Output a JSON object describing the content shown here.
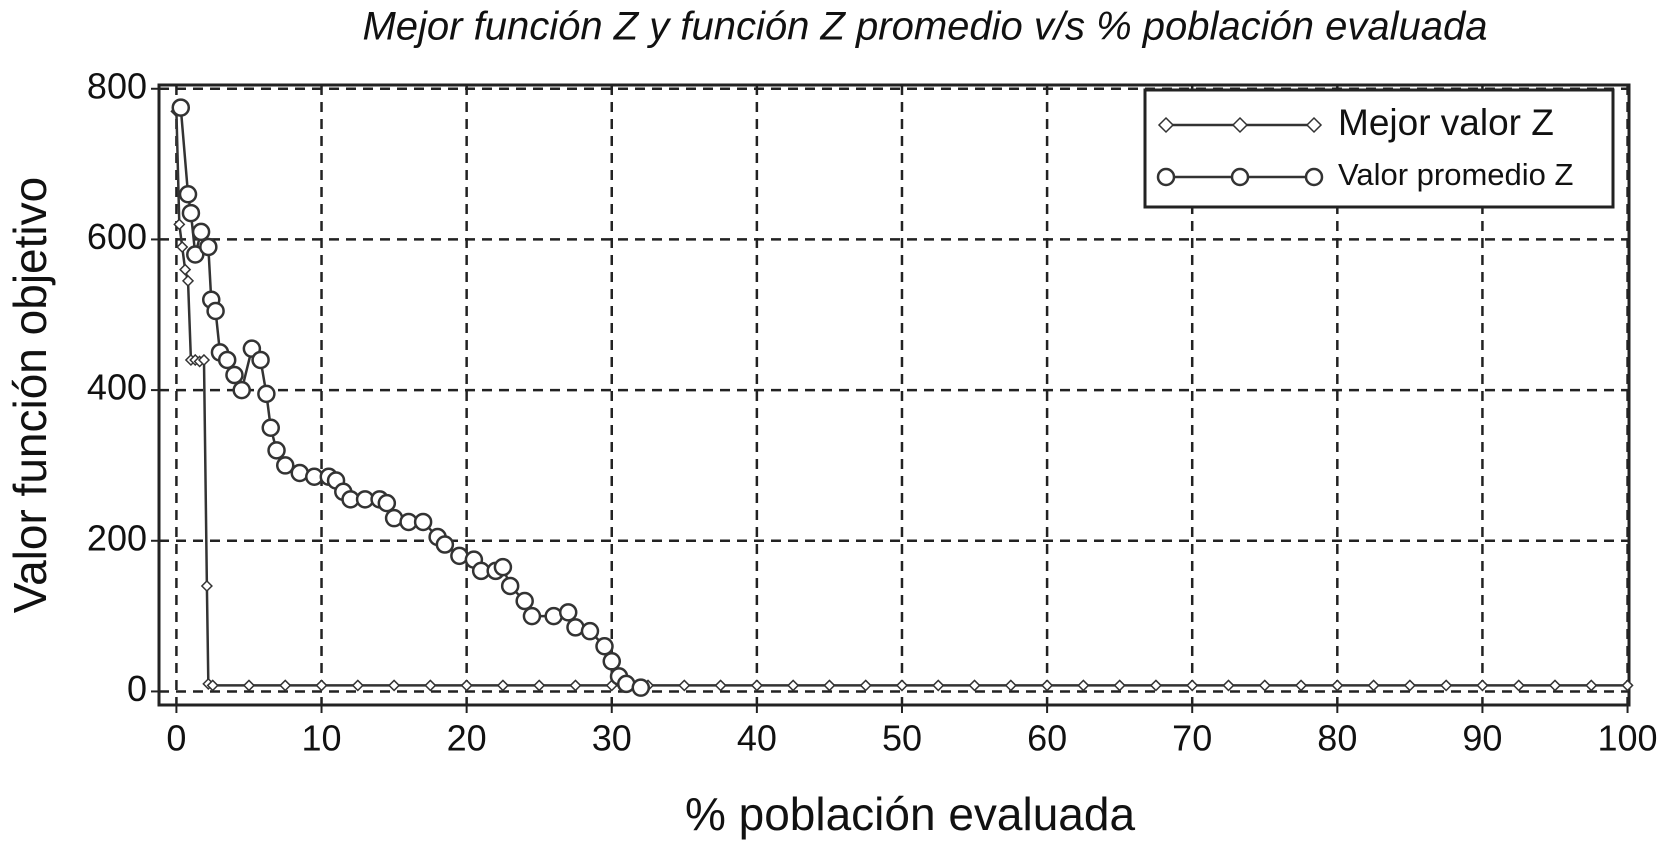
{
  "chart_data": {
    "type": "line",
    "title": "Mejor función Z y función Z promedio v/s % población evaluada",
    "x_label": "% población evaluada",
    "y_label": "Valor función objetivo",
    "xlim": [
      -1.2,
      100.1
    ],
    "ylim": [
      -18,
      805
    ],
    "xticks": [
      0,
      10,
      20,
      30,
      40,
      50,
      60,
      70,
      80,
      90,
      100
    ],
    "yticks": [
      0,
      200,
      400,
      600,
      800
    ],
    "grid": true,
    "legend": "upper right",
    "series": [
      {
        "name": "Mejor valor Z",
        "color": "#333333",
        "marker": "diamond",
        "x": [
          0,
          0.2,
          0.4,
          0.6,
          0.8,
          1.0,
          1.3,
          1.6,
          1.9,
          2.1,
          2.2,
          2.5,
          5,
          7.5,
          10,
          12.5,
          15,
          17.5,
          20,
          22.5,
          25,
          27.5,
          30,
          32.5,
          35,
          37.5,
          40,
          42.5,
          45,
          47.5,
          50,
          52.5,
          55,
          57.5,
          60,
          62.5,
          65,
          67.5,
          70,
          72.5,
          75,
          77.5,
          80,
          82.5,
          85,
          87.5,
          90,
          92.5,
          95,
          97.5,
          100
        ],
        "values": [
          770,
          620,
          590,
          560,
          545,
          440,
          440,
          438,
          440,
          140,
          10,
          8,
          8,
          8,
          8,
          8,
          8,
          8,
          8,
          8,
          8,
          8,
          8,
          8,
          8,
          8,
          8,
          8,
          8,
          8,
          8,
          8,
          8,
          8,
          8,
          8,
          8,
          8,
          8,
          8,
          8,
          8,
          8,
          8,
          8,
          8,
          8,
          8,
          8,
          8,
          8
        ]
      },
      {
        "name": "Valor promedio Z",
        "color": "#333333",
        "marker": "circle",
        "x": [
          0.3,
          0.8,
          1.0,
          1.3,
          1.7,
          2.2,
          2.4,
          2.7,
          3.0,
          3.5,
          4.0,
          4.5,
          5.2,
          5.8,
          6.2,
          6.5,
          6.9,
          7.5,
          8.5,
          9.5,
          10.5,
          11.0,
          11.5,
          12.0,
          13.0,
          14.0,
          14.5,
          15.0,
          16.0,
          17.0,
          18.0,
          18.5,
          19.5,
          20.5,
          21.0,
          22.0,
          22.5,
          23.0,
          24.0,
          24.5,
          26.0,
          27.0,
          27.5,
          28.5,
          29.5,
          30.0,
          30.5,
          31.0,
          32.0
        ],
        "values": [
          775,
          660,
          635,
          580,
          610,
          590,
          520,
          505,
          450,
          440,
          420,
          400,
          455,
          440,
          395,
          350,
          320,
          300,
          290,
          285,
          285,
          280,
          265,
          255,
          255,
          255,
          250,
          230,
          225,
          225,
          205,
          195,
          180,
          175,
          160,
          160,
          165,
          140,
          120,
          100,
          100,
          105,
          85,
          80,
          60,
          40,
          20,
          10,
          5
        ]
      }
    ]
  }
}
